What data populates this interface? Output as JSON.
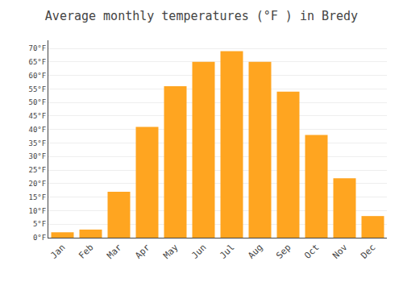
{
  "chart_data": {
    "type": "bar",
    "title": "Average monthly temperatures (°F ) in Bredy",
    "categories": [
      "Jan",
      "Feb",
      "Mar",
      "Apr",
      "May",
      "Jun",
      "Jul",
      "Aug",
      "Sep",
      "Oct",
      "Nov",
      "Dec"
    ],
    "values": [
      2,
      3,
      17,
      41,
      56,
      65,
      69,
      65,
      54,
      38,
      22,
      8
    ],
    "color": "#FFA520",
    "ylim": [
      0,
      73
    ],
    "yticks": [
      {
        "value": 0,
        "label": "0°F"
      },
      {
        "value": 5,
        "label": "5°F"
      },
      {
        "value": 10,
        "label": "10°F"
      },
      {
        "value": 15,
        "label": "15°F"
      },
      {
        "value": 20,
        "label": "20°F"
      },
      {
        "value": 25,
        "label": "25°F"
      },
      {
        "value": 30,
        "label": "30°F"
      },
      {
        "value": 35,
        "label": "35°F"
      },
      {
        "value": 40,
        "label": "40°F"
      },
      {
        "value": 45,
        "label": "45°F"
      },
      {
        "value": 50,
        "label": "50°F"
      },
      {
        "value": 55,
        "label": "55°F"
      },
      {
        "value": 60,
        "label": "60°F"
      },
      {
        "value": 65,
        "label": "65°F"
      },
      {
        "value": 70,
        "label": "70°F"
      }
    ],
    "grid": true
  }
}
